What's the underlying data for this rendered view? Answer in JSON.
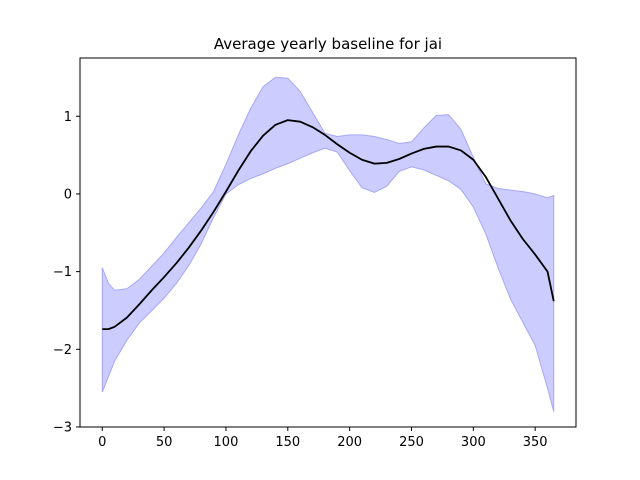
{
  "chart_data": {
    "type": "line",
    "title": "Average yearly baseline for jai",
    "xlabel": "",
    "ylabel": "",
    "xlim": [
      -18,
      383
    ],
    "ylim": [
      -3,
      1.75
    ],
    "xticks": [
      0,
      50,
      100,
      150,
      200,
      250,
      300,
      350
    ],
    "yticks": [
      -3,
      -2,
      -1,
      0,
      1
    ],
    "ytick_labels": [
      "−3",
      "−2",
      "−1",
      "0",
      "1"
    ],
    "grid": false,
    "colors": {
      "mean_line": "#000000",
      "band_fill": "#ccccff",
      "band_edge": "#a6a6f5"
    },
    "series": [
      {
        "type": "line",
        "x": [
          0,
          5,
          10,
          20,
          30,
          40,
          50,
          60,
          70,
          80,
          90,
          100,
          110,
          120,
          130,
          140,
          150,
          160,
          170,
          180,
          190,
          200,
          210,
          220,
          230,
          240,
          250,
          260,
          270,
          280,
          290,
          300,
          310,
          320,
          330,
          340,
          350,
          360,
          365
        ],
        "values": [
          -1.74,
          -1.74,
          -1.71,
          -1.59,
          -1.42,
          -1.24,
          -1.07,
          -0.89,
          -0.69,
          -0.47,
          -0.23,
          0.03,
          0.3,
          0.55,
          0.75,
          0.89,
          0.95,
          0.93,
          0.86,
          0.76,
          0.64,
          0.53,
          0.44,
          0.39,
          0.4,
          0.45,
          0.52,
          0.58,
          0.61,
          0.61,
          0.56,
          0.44,
          0.22,
          -0.06,
          -0.34,
          -0.58,
          -0.78,
          -1.0,
          -1.38
        ]
      },
      {
        "type": "band",
        "x": [
          0,
          5,
          10,
          20,
          30,
          40,
          50,
          60,
          70,
          80,
          90,
          100,
          110,
          120,
          130,
          140,
          150,
          160,
          170,
          180,
          190,
          200,
          210,
          220,
          230,
          240,
          250,
          260,
          270,
          280,
          290,
          300,
          310,
          320,
          330,
          340,
          350,
          360,
          365
        ],
        "upper": [
          -0.95,
          -1.15,
          -1.24,
          -1.22,
          -1.1,
          -0.93,
          -0.76,
          -0.56,
          -0.37,
          -0.18,
          0.03,
          0.38,
          0.76,
          1.1,
          1.38,
          1.5,
          1.49,
          1.32,
          1.05,
          0.78,
          0.74,
          0.76,
          0.76,
          0.74,
          0.7,
          0.65,
          0.67,
          0.85,
          1.01,
          1.02,
          0.83,
          0.47,
          0.13,
          0.07,
          0.05,
          0.03,
          0.0,
          -0.05,
          -0.02
        ],
        "lower": [
          -2.55,
          -2.35,
          -2.15,
          -1.88,
          -1.66,
          -1.5,
          -1.34,
          -1.15,
          -0.92,
          -0.64,
          -0.3,
          0.0,
          0.12,
          0.2,
          0.26,
          0.33,
          0.39,
          0.46,
          0.53,
          0.59,
          0.54,
          0.3,
          0.08,
          0.02,
          0.1,
          0.29,
          0.35,
          0.31,
          0.24,
          0.17,
          0.06,
          -0.17,
          -0.51,
          -0.95,
          -1.35,
          -1.65,
          -1.95,
          -2.5,
          -2.8
        ]
      }
    ]
  }
}
